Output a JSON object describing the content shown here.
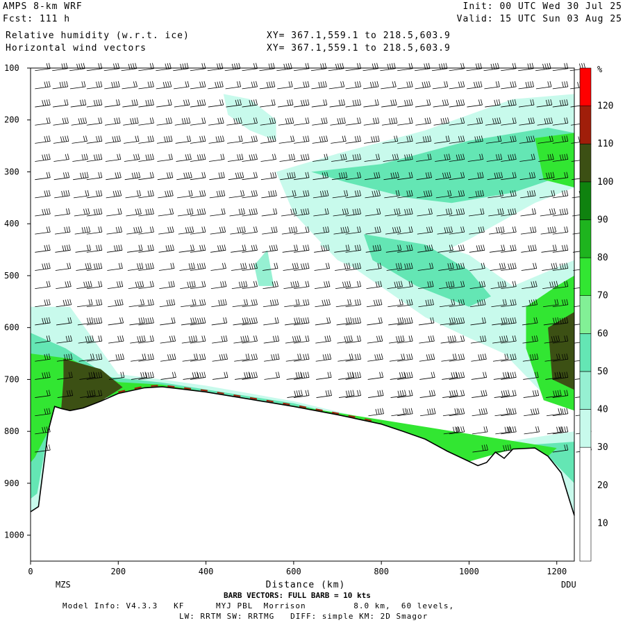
{
  "header": {
    "model": "AMPS 8-km WRF",
    "fcst": "Fcst: 111 h",
    "field1": "Relative humidity (w.r.t. ice)",
    "field2": "Horizontal wind vectors",
    "init": "Init: 00 UTC Wed 30 Jul 25",
    "valid": "Valid: 15 UTC Sun 03 Aug 25",
    "xy1": "XY= 367.1,559.1 to 218.5,603.9",
    "xy2": "XY= 367.1,559.1 to 218.5,603.9"
  },
  "footer": {
    "barb_note": "BARB VECTORS: FULL BARB = 10 kts",
    "model_info": "Model Info: V4.3.3   KF      MYJ PBL  Morrison         8.0 km,  60 levels,",
    "physics": "LW: RRTM SW: RRTMG   DIFF: simple KM: 2D Smagor"
  },
  "chart_data": {
    "type": "heatmap",
    "xlabel": "Distance (km)",
    "ylabel": "",
    "xlim": [
      0,
      1240
    ],
    "ylim": [
      1050,
      100
    ],
    "x_ticks": [
      0,
      200,
      400,
      600,
      800,
      1000,
      1200
    ],
    "y_ticks": [
      100,
      200,
      300,
      400,
      500,
      600,
      700,
      800,
      900,
      1000
    ],
    "endpoint_left": "MZS",
    "endpoint_right": "DDU",
    "colorbar": {
      "unit": "%",
      "ticks": [
        10,
        20,
        30,
        40,
        50,
        60,
        70,
        80,
        90,
        100,
        110,
        120
      ],
      "bins": [
        {
          "from": 0,
          "to": 30,
          "color": "#ffffff"
        },
        {
          "from": 30,
          "to": 40,
          "color": "#c8faec"
        },
        {
          "from": 40,
          "to": 50,
          "color": "#96f0d2"
        },
        {
          "from": 50,
          "to": 60,
          "color": "#64e6b4"
        },
        {
          "from": 60,
          "to": 70,
          "color": "#82f096"
        },
        {
          "from": 70,
          "to": 80,
          "color": "#32e632"
        },
        {
          "from": 80,
          "to": 90,
          "color": "#1eb41e"
        },
        {
          "from": 90,
          "to": 100,
          "color": "#0f820f"
        },
        {
          "from": 100,
          "to": 110,
          "color": "#3c5014"
        },
        {
          "from": 110,
          "to": 120,
          "color": "#a01e0a"
        },
        {
          "from": 120,
          "to": 130,
          "color": "#ff0000"
        }
      ]
    },
    "terrain_pressure": [
      [
        0,
        955
      ],
      [
        18,
        945
      ],
      [
        40,
        800
      ],
      [
        55,
        752
      ],
      [
        70,
        756
      ],
      [
        90,
        760
      ],
      [
        120,
        755
      ],
      [
        160,
        742
      ],
      [
        200,
        727
      ],
      [
        260,
        716
      ],
      [
        300,
        714
      ],
      [
        400,
        724
      ],
      [
        500,
        738
      ],
      [
        600,
        752
      ],
      [
        700,
        768
      ],
      [
        800,
        786
      ],
      [
        850,
        800
      ],
      [
        900,
        815
      ],
      [
        950,
        838
      ],
      [
        1000,
        858
      ],
      [
        1020,
        866
      ],
      [
        1040,
        860
      ],
      [
        1060,
        840
      ],
      [
        1080,
        852
      ],
      [
        1100,
        834
      ],
      [
        1150,
        832
      ],
      [
        1180,
        848
      ],
      [
        1210,
        880
      ],
      [
        1230,
        935
      ],
      [
        1240,
        962
      ]
    ],
    "humidity_regions": [
      {
        "level": 35,
        "outline": [
          [
            0,
            560
          ],
          [
            90,
            560
          ],
          [
            200,
            690
          ],
          [
            300,
            700
          ],
          [
            400,
            712
          ],
          [
            600,
            742
          ],
          [
            800,
            782
          ],
          [
            1000,
            828
          ],
          [
            1100,
            818
          ],
          [
            1240,
            800
          ],
          [
            1240,
            962
          ],
          [
            1230,
            935
          ],
          [
            1180,
            848
          ],
          [
            1100,
            834
          ],
          [
            1000,
            858
          ],
          [
            800,
            786
          ],
          [
            600,
            752
          ],
          [
            400,
            724
          ],
          [
            300,
            714
          ],
          [
            200,
            727
          ],
          [
            90,
            760
          ],
          [
            40,
            800
          ],
          [
            18,
            945
          ],
          [
            0,
            955
          ]
        ]
      },
      {
        "level": 55,
        "outline": [
          [
            0,
            610
          ],
          [
            80,
            640
          ],
          [
            180,
            695
          ],
          [
            300,
            706
          ],
          [
            600,
            746
          ],
          [
            900,
            810
          ],
          [
            1100,
            828
          ],
          [
            1240,
            820
          ],
          [
            1240,
            900
          ],
          [
            1180,
            848
          ],
          [
            1100,
            834
          ],
          [
            1000,
            858
          ],
          [
            800,
            786
          ],
          [
            600,
            752
          ],
          [
            400,
            724
          ],
          [
            300,
            714
          ],
          [
            200,
            727
          ],
          [
            90,
            760
          ],
          [
            40,
            800
          ],
          [
            15,
            920
          ],
          [
            0,
            930
          ]
        ]
      },
      {
        "level": 75,
        "outline": [
          [
            0,
            650
          ],
          [
            90,
            660
          ],
          [
            200,
            705
          ],
          [
            300,
            710
          ],
          [
            1200,
            832
          ],
          [
            1180,
            848
          ],
          [
            1100,
            834
          ],
          [
            1000,
            858
          ],
          [
            800,
            786
          ],
          [
            600,
            752
          ],
          [
            400,
            724
          ],
          [
            300,
            714
          ],
          [
            200,
            727
          ],
          [
            90,
            760
          ],
          [
            40,
            800
          ],
          [
            10,
            850
          ],
          [
            0,
            860
          ]
        ]
      },
      {
        "level": 105,
        "outline": [
          [
            75,
            660
          ],
          [
            160,
            680
          ],
          [
            210,
            715
          ],
          [
            160,
            742
          ],
          [
            120,
            755
          ],
          [
            90,
            760
          ],
          [
            70,
            756
          ],
          [
            75,
            700
          ]
        ]
      },
      {
        "level": 35,
        "outline": [
          [
            560,
            300
          ],
          [
            700,
            265
          ],
          [
            900,
            220
          ],
          [
            1100,
            160
          ],
          [
            1240,
            150
          ],
          [
            1240,
            330
          ],
          [
            1150,
            360
          ],
          [
            1000,
            430
          ],
          [
            900,
            470
          ],
          [
            800,
            510
          ],
          [
            700,
            470
          ],
          [
            600,
            380
          ]
        ]
      },
      {
        "level": 55,
        "outline": [
          [
            640,
            300
          ],
          [
            800,
            285
          ],
          [
            1000,
            240
          ],
          [
            1180,
            215
          ],
          [
            1240,
            225
          ],
          [
            1240,
            300
          ],
          [
            1100,
            340
          ],
          [
            960,
            360
          ],
          [
            860,
            350
          ],
          [
            720,
            320
          ]
        ]
      },
      {
        "level": 75,
        "outline": [
          [
            1150,
            235
          ],
          [
            1240,
            225
          ],
          [
            1240,
            330
          ],
          [
            1170,
            315
          ]
        ]
      },
      {
        "level": 35,
        "outline": [
          [
            700,
            390
          ],
          [
            820,
            410
          ],
          [
            1000,
            460
          ],
          [
            1100,
            520
          ],
          [
            1240,
            470
          ],
          [
            1240,
            760
          ],
          [
            1160,
            720
          ],
          [
            1080,
            650
          ],
          [
            1000,
            620
          ],
          [
            900,
            580
          ],
          [
            780,
            510
          ],
          [
            660,
            440
          ]
        ]
      },
      {
        "level": 55,
        "outline": [
          [
            760,
            420
          ],
          [
            900,
            440
          ],
          [
            1000,
            490
          ],
          [
            1050,
            540
          ],
          [
            1000,
            560
          ],
          [
            880,
            520
          ],
          [
            780,
            470
          ]
        ]
      },
      {
        "level": 75,
        "outline": [
          [
            1130,
            560
          ],
          [
            1200,
            520
          ],
          [
            1240,
            500
          ],
          [
            1240,
            760
          ],
          [
            1170,
            740
          ],
          [
            1130,
            640
          ]
        ]
      },
      {
        "level": 105,
        "outline": [
          [
            1180,
            600
          ],
          [
            1240,
            570
          ],
          [
            1240,
            720
          ],
          [
            1190,
            700
          ]
        ]
      },
      {
        "level": 35,
        "outline": [
          [
            440,
            150
          ],
          [
            500,
            160
          ],
          [
            560,
            200
          ],
          [
            560,
            240
          ],
          [
            500,
            220
          ],
          [
            450,
            190
          ]
        ]
      },
      {
        "level": 45,
        "outline": [
          [
            510,
            480
          ],
          [
            540,
            450
          ],
          [
            555,
            520
          ],
          [
            520,
            520
          ]
        ]
      }
    ],
    "wind_barbs": {
      "columns": 32,
      "levels": 22,
      "note": "full barb = 10 kts"
    }
  }
}
